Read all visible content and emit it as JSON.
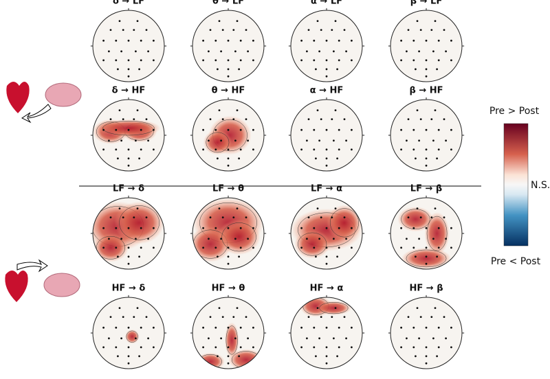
{
  "rows": [
    {
      "panels": [
        "δ → LF",
        "θ → LF",
        "α → LF",
        "β → LF"
      ]
    },
    {
      "panels": [
        "δ → HF",
        "θ → HF",
        "α → HF",
        "β → HF"
      ]
    },
    {
      "panels": [
        "LF → δ",
        "LF → θ",
        "LF → α",
        "LF → β"
      ]
    },
    {
      "panels": [
        "HF → δ",
        "HF → θ",
        "HF → α",
        "HF → β"
      ]
    }
  ],
  "colorbar": {
    "top": "Pre > Post",
    "middle": "N.S.",
    "bottom": "Pre < Post"
  }
}
